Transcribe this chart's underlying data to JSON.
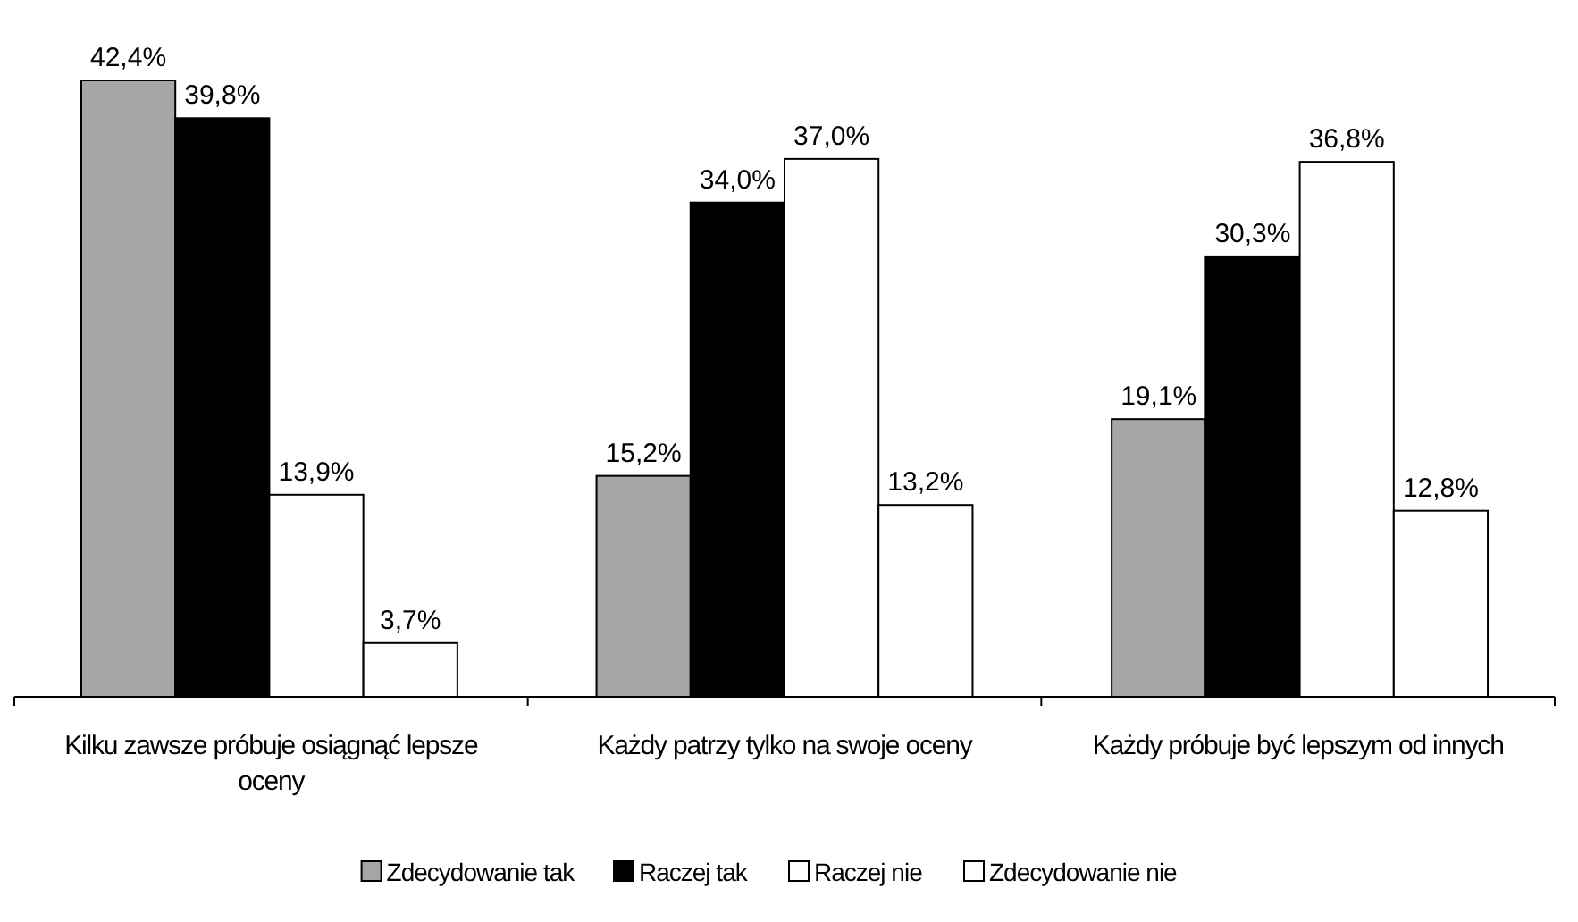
{
  "chart_data": {
    "type": "bar",
    "categories": [
      "Kilku zawsze próbuje osiągnąć lepsze oceny",
      "Każdy patrzy tylko na swoje oceny",
      "Każdy próbuje być lepszym od innych"
    ],
    "series": [
      {
        "name": "Zdecydowanie tak",
        "color": "#a6a6a6",
        "values": [
          42.4,
          15.2,
          19.1
        ],
        "value_labels": [
          "42,4%",
          "15,2%",
          "19,1%"
        ]
      },
      {
        "name": "Raczej tak",
        "color": "#000000",
        "values": [
          39.8,
          34.0,
          30.3
        ],
        "value_labels": [
          "39,8%",
          "34,0%",
          "30,3%"
        ]
      },
      {
        "name": "Raczej nie",
        "color": "#ffffff",
        "values": [
          13.9,
          37.0,
          36.8
        ],
        "value_labels": [
          "13,9%",
          "37,0%",
          "36,8%"
        ]
      },
      {
        "name": "Zdecydowanie nie",
        "color": "#ffffff",
        "values": [
          3.7,
          13.2,
          12.8
        ],
        "value_labels": [
          "3,7%",
          "13,2%",
          "12,8%"
        ]
      }
    ],
    "legend": "bottom"
  }
}
